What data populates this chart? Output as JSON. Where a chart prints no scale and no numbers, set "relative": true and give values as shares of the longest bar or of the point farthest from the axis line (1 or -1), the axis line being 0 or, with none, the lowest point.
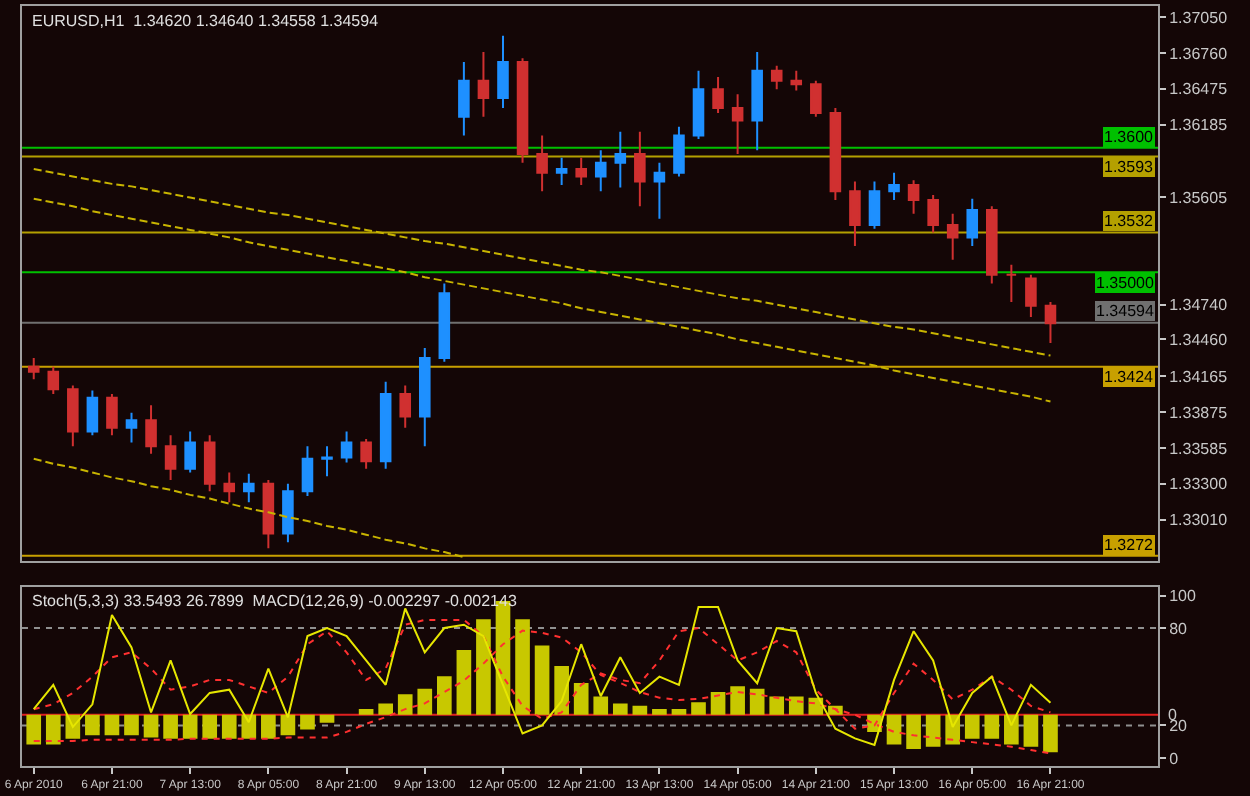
{
  "chart_data": [
    {
      "type": "candlestick",
      "title": "EURUSD,H1  1.34620 1.34640 1.34558 1.34594",
      "categories": [
        null,
        null,
        null,
        null,
        null,
        null,
        null,
        null,
        null,
        null,
        null,
        null,
        null,
        null,
        null,
        null,
        null,
        null,
        null,
        null,
        null,
        null,
        null,
        null,
        null,
        null,
        null,
        null,
        null,
        null,
        null,
        null,
        null,
        null,
        null,
        null,
        null,
        null,
        null,
        null,
        null,
        null,
        null,
        null,
        null,
        null,
        null,
        null,
        null,
        null,
        null,
        null,
        null
      ],
      "ohlc": [
        [
          1.3424,
          1.3431,
          1.3414,
          1.342
        ],
        [
          1.342,
          1.3424,
          1.3402,
          1.3406
        ],
        [
          1.3406,
          1.3409,
          1.336,
          1.3372
        ],
        [
          1.3372,
          1.3405,
          1.3369,
          1.3399
        ],
        [
          1.3399,
          1.3402,
          1.3369,
          1.3375
        ],
        [
          1.3375,
          1.3387,
          1.3363,
          1.3381
        ],
        [
          1.3381,
          1.3393,
          1.3354,
          1.336
        ],
        [
          1.336,
          1.3369,
          1.3333,
          1.3342
        ],
        [
          1.3342,
          1.3372,
          1.3339,
          1.3363
        ],
        [
          1.3363,
          1.3369,
          1.3324,
          1.333
        ],
        [
          1.333,
          1.3339,
          1.3315,
          1.3324
        ],
        [
          1.3324,
          1.3338,
          1.3315,
          1.333
        ],
        [
          1.333,
          1.3333,
          1.3278,
          1.329
        ],
        [
          1.329,
          1.333,
          1.3283,
          1.3324
        ],
        [
          1.3324,
          1.336,
          1.332,
          1.335
        ],
        [
          1.335,
          1.336,
          1.3336,
          1.3351
        ],
        [
          1.3351,
          1.3372,
          1.3347,
          1.3363
        ],
        [
          1.3363,
          1.3366,
          1.3342,
          1.3348
        ],
        [
          1.3348,
          1.3412,
          1.3342,
          1.3402
        ],
        [
          1.3402,
          1.3409,
          1.3375,
          1.3384
        ],
        [
          1.3384,
          1.3439,
          1.336,
          1.3431
        ],
        [
          1.3431,
          1.3491,
          1.3428,
          1.3483
        ],
        [
          1.3625,
          1.3669,
          1.361,
          1.3654
        ],
        [
          1.3654,
          1.3677,
          1.3625,
          1.364
        ],
        [
          1.364,
          1.369,
          1.3632,
          1.3669
        ],
        [
          1.3669,
          1.3672,
          1.3588,
          1.3595
        ],
        [
          1.3595,
          1.361,
          1.3565,
          1.358
        ],
        [
          1.358,
          1.3592,
          1.357,
          1.3583
        ],
        [
          1.3583,
          1.3592,
          1.357,
          1.3577
        ],
        [
          1.3577,
          1.3598,
          1.3565,
          1.3588
        ],
        [
          1.3588,
          1.3613,
          1.3568,
          1.3595
        ],
        [
          1.3595,
          1.3613,
          1.3553,
          1.3573
        ],
        [
          1.3573,
          1.3588,
          1.3543,
          1.358
        ],
        [
          1.358,
          1.3617,
          1.3577,
          1.361
        ],
        [
          1.361,
          1.3662,
          1.3607,
          1.3647
        ],
        [
          1.3647,
          1.3657,
          1.3628,
          1.3632
        ],
        [
          1.3632,
          1.3643,
          1.3595,
          1.3622
        ],
        [
          1.3622,
          1.3677,
          1.3598,
          1.3662
        ],
        [
          1.3662,
          1.3666,
          1.3647,
          1.3654
        ],
        [
          1.3654,
          1.3662,
          1.3646,
          1.3651
        ],
        [
          1.3651,
          1.3654,
          1.3625,
          1.3628
        ],
        [
          1.3628,
          1.3632,
          1.3558,
          1.3565
        ],
        [
          1.3565,
          1.3573,
          1.3521,
          1.3538
        ],
        [
          1.3538,
          1.3573,
          1.3535,
          1.3565
        ],
        [
          1.3565,
          1.358,
          1.3558,
          1.357
        ],
        [
          1.357,
          1.3574,
          1.3547,
          1.3558
        ],
        [
          1.3558,
          1.3562,
          1.3532,
          1.3538
        ],
        [
          1.3538,
          1.3547,
          1.351,
          1.3528
        ],
        [
          1.3528,
          1.3559,
          1.3521,
          1.355
        ],
        [
          1.355,
          1.3553,
          1.3491,
          1.3498
        ],
        [
          1.3498,
          1.3506,
          1.3476,
          1.3498
        ],
        [
          1.3495,
          1.3498,
          1.3464,
          1.3473
        ],
        [
          1.3473,
          1.3476,
          1.3443,
          1.3459
        ]
      ],
      "colors": [
        "#d03030",
        "#d03030",
        "#d03030",
        "#1e90ff",
        "#d03030",
        "#1e90ff",
        "#d03030",
        "#d03030",
        "#1e90ff",
        "#d03030",
        "#d03030",
        "#1e90ff",
        "#d03030",
        "#1e90ff",
        "#1e90ff",
        "#1e90ff",
        "#1e90ff",
        "#d03030",
        "#1e90ff",
        "#d03030",
        "#1e90ff",
        "#1e90ff",
        "#1e90ff",
        "#d03030",
        "#1e90ff",
        "#d03030",
        "#d03030",
        "#1e90ff",
        "#d03030",
        "#1e90ff",
        "#1e90ff",
        "#d03030",
        "#1e90ff",
        "#1e90ff",
        "#1e90ff",
        "#d03030",
        "#d03030",
        "#1e90ff",
        "#d03030",
        "#d03030",
        "#d03030",
        "#d03030",
        "#d03030",
        "#1e90ff",
        "#1e90ff",
        "#d03030",
        "#d03030",
        "#d03030",
        "#1e90ff",
        "#d03030",
        "#d03030",
        "#d03030",
        "#d03030"
      ],
      "series": [
        {
          "type": "line",
          "color": "#c8b400",
          "line_style": "dashed",
          "values": [
            1.3583,
            1.358,
            1.3577,
            1.3574,
            1.3571,
            1.3569,
            1.3566,
            1.3563,
            1.356,
            1.3557,
            1.3554,
            1.3551,
            1.3548,
            1.3546,
            1.3543,
            1.354,
            1.3537,
            1.3534,
            1.3531,
            1.3528,
            1.3525,
            1.3523,
            1.352,
            1.3517,
            1.3514,
            1.3511,
            1.3508,
            1.3505,
            1.3502,
            1.35,
            1.3497,
            1.3494,
            1.3491,
            1.3488,
            1.3485,
            1.3482,
            1.3479,
            1.3477,
            1.3474,
            1.3471,
            1.3468,
            1.3465,
            1.3462,
            1.3459,
            1.3456,
            1.3454,
            1.3451,
            1.3448,
            1.3445,
            1.3442,
            1.3439,
            1.3436,
            1.3433
          ]
        },
        {
          "type": "line",
          "color": "#c8b400",
          "line_style": "dashed",
          "values": [
            1.3559,
            1.3556,
            1.3553,
            1.3549,
            1.3546,
            1.3543,
            1.354,
            1.3537,
            1.3534,
            1.3531,
            1.3528,
            1.3524,
            1.3521,
            1.3518,
            1.3515,
            1.3512,
            1.3509,
            1.3506,
            1.3503,
            1.35,
            1.3496,
            1.3493,
            1.349,
            1.3487,
            1.3484,
            1.3481,
            1.3478,
            1.3475,
            1.3471,
            1.3468,
            1.3465,
            1.3462,
            1.3459,
            1.3456,
            1.3453,
            1.345,
            1.3446,
            1.3443,
            1.344,
            1.3437,
            1.3434,
            1.3431,
            1.3428,
            1.3425,
            1.3421,
            1.3418,
            1.3415,
            1.3412,
            1.3409,
            1.3406,
            1.3403,
            1.34,
            1.3396
          ]
        },
        {
          "type": "line",
          "color": "#c8b400",
          "line_style": "dashed",
          "values": [
            1.335,
            1.3346,
            1.3343,
            1.3339,
            1.3335,
            1.3332,
            1.3328,
            1.3325,
            1.3321,
            1.3318,
            1.3314,
            1.331,
            1.3307,
            1.3303,
            1.33,
            1.3296,
            1.3293,
            1.3289,
            1.3285,
            1.3282,
            1.3278,
            1.3275,
            1.3271,
            null,
            null,
            null,
            null,
            null,
            null,
            null,
            null,
            null,
            null,
            null,
            null,
            null,
            null,
            null,
            null,
            null,
            null,
            null,
            null,
            null,
            null,
            null,
            null,
            null,
            null,
            null,
            null,
            null,
            null
          ]
        }
      ],
      "ylim": [
        1.3268,
        1.3714
      ],
      "yticks": [
        {
          "value": 1.3705,
          "label": "1.37050"
        },
        {
          "value": 1.3676,
          "label": "1.36760"
        },
        {
          "value": 1.36475,
          "label": "1.36475"
        },
        {
          "value": 1.36185,
          "label": "1.36185"
        },
        {
          "value": 1.35605,
          "label": "1.35605"
        },
        {
          "value": 1.3474,
          "label": "1.34740"
        },
        {
          "value": 1.3446,
          "label": "1.34460"
        },
        {
          "value": 1.34165,
          "label": "1.34165"
        },
        {
          "value": 1.33875,
          "label": "1.33875"
        },
        {
          "value": 1.33585,
          "label": "1.33585"
        },
        {
          "value": 1.333,
          "label": "1.33300"
        },
        {
          "value": 1.3301,
          "label": "1.33010"
        }
      ],
      "tick_labels": "y",
      "ref_lines": [
        {
          "axis": "y",
          "value": 1.36,
          "label": "1.3600",
          "color": "#00c000"
        },
        {
          "axis": "y",
          "value": 1.3593,
          "label": "1.3593",
          "color": "#b4a000"
        },
        {
          "axis": "y",
          "value": 1.3532,
          "label": "1.3532",
          "color": "#b4a000"
        },
        {
          "axis": "y",
          "value": 1.35,
          "label": "1.35000",
          "color": "#00c000"
        },
        {
          "axis": "y",
          "value": 1.34594,
          "label": "1.34594",
          "color": "#707070"
        },
        {
          "axis": "y",
          "value": 1.3424,
          "label": "1.3424",
          "color": "#c8a000"
        },
        {
          "axis": "y",
          "value": 1.3272,
          "label": "1.3272",
          "color": "#c8a000"
        }
      ]
    },
    {
      "type": "bar",
      "relative": true,
      "title": "Stoch(5,3,3) 33.5493 26.7899  MACD(12,26,9) -0.002297 -0.002143",
      "categories": [
        null,
        null,
        null,
        null,
        null,
        null,
        null,
        null,
        null,
        null,
        null,
        null,
        null,
        null,
        null,
        null,
        null,
        null,
        null,
        null,
        null,
        null,
        null,
        null,
        null,
        null,
        null,
        null,
        null,
        null,
        null,
        null,
        null,
        null,
        null,
        null,
        null,
        null,
        null,
        null,
        null,
        null,
        null,
        null,
        null,
        null,
        null,
        null,
        null,
        null,
        null,
        null,
        null
      ],
      "series": [
        {
          "type": "bar",
          "color": "#c8c800",
          "values": [
            -0.26,
            -0.26,
            -0.21,
            -0.18,
            -0.18,
            -0.18,
            -0.2,
            -0.21,
            -0.21,
            -0.21,
            -0.21,
            -0.21,
            -0.21,
            -0.18,
            -0.13,
            -0.07,
            0,
            0.05,
            0.1,
            0.18,
            0.23,
            0.34,
            0.57,
            0.84,
            1,
            0.84,
            0.61,
            0.43,
            0.28,
            0.16,
            0.1,
            0.08,
            0.05,
            0.05,
            0.11,
            0.2,
            0.25,
            0.23,
            0.16,
            0.16,
            0.15,
            0.08,
            0,
            -0.15,
            -0.26,
            -0.3,
            -0.28,
            -0.26,
            -0.21,
            -0.21,
            -0.26,
            -0.28,
            -0.33
          ]
        },
        {
          "type": "line",
          "color": "#ff3030",
          "line_style": "dotted",
          "values": [
            -0.23,
            -0.23,
            -0.23,
            -0.22,
            -0.22,
            -0.22,
            -0.22,
            -0.22,
            -0.21,
            -0.21,
            -0.21,
            -0.21,
            -0.21,
            -0.2,
            -0.2,
            -0.2,
            -0.15,
            -0.08,
            -0.02,
            0.05,
            0.1,
            0.2,
            0.3,
            0.45,
            0.62,
            0.74,
            0.72,
            0.68,
            0.55,
            0.35,
            0.28,
            0.2,
            0.15,
            0.13,
            0.14,
            0.17,
            0.2,
            0.18,
            0.15,
            0.12,
            0.1,
            0.05,
            0,
            -0.08,
            -0.15,
            -0.18,
            -0.2,
            -0.22,
            -0.24,
            -0.26,
            -0.28,
            -0.31,
            -0.34
          ]
        }
      ],
      "tick_labels": false,
      "annotations": [
        "0"
      ],
      "ref_lines": [
        {
          "axis": "y",
          "value": 0,
          "color": "#e02020"
        }
      ]
    },
    {
      "type": "line",
      "categories": [
        "6 Apr 2010",
        null,
        null,
        null,
        "6 Apr 21:00",
        null,
        null,
        null,
        "7 Apr 13:00",
        null,
        null,
        null,
        "8 Apr 05:00",
        null,
        null,
        null,
        "8 Apr 21:00",
        null,
        null,
        null,
        "9 Apr 13:00",
        null,
        null,
        null,
        "12 Apr 05:00",
        null,
        null,
        null,
        "12 Apr 21:00",
        null,
        null,
        null,
        "13 Apr 13:00",
        null,
        null,
        null,
        "14 Apr 05:00",
        null,
        null,
        null,
        "14 Apr 21:00",
        null,
        null,
        null,
        "15 Apr 13:00",
        null,
        null,
        null,
        "16 Apr 05:00",
        null,
        null,
        null,
        "16 Apr 21:00"
      ],
      "series": [
        {
          "type": "line",
          "color": "#ff3030",
          "line_style": "dotted",
          "values": [
            30,
            33,
            40,
            50,
            62,
            65,
            55,
            42,
            44,
            48,
            48,
            44,
            40,
            50,
            70,
            78,
            65,
            48,
            55,
            82,
            85,
            85,
            85,
            75,
            50,
            32,
            24,
            28,
            45,
            52,
            48,
            46,
            60,
            78,
            80,
            70,
            60,
            65,
            72,
            65,
            42,
            30,
            18,
            20,
            40,
            58,
            48,
            36,
            42,
            50,
            42,
            32,
            28
          ]
        },
        {
          "type": "line",
          "color": "#e6e600",
          "line_style": "solid",
          "values": [
            30,
            45,
            19,
            33,
            88,
            68,
            28,
            60,
            27,
            40,
            42,
            22,
            55,
            25,
            75,
            80,
            75,
            60,
            45,
            92,
            65,
            80,
            82,
            75,
            45,
            15,
            20,
            35,
            70,
            38,
            62,
            40,
            50,
            45,
            93,
            93,
            60,
            46,
            80,
            78,
            40,
            18,
            12,
            8,
            48,
            78,
            60,
            19,
            40,
            50,
            20,
            45,
            34
          ]
        }
      ],
      "ylim": [
        -5,
        105
      ],
      "yticks": [
        0,
        20,
        80,
        100
      ],
      "ref_lines": [
        {
          "axis": "y",
          "value": 80,
          "color": "#909090",
          "line_style": "dotted"
        },
        {
          "axis": "y",
          "value": 20,
          "color": "#909090",
          "line_style": "dotted"
        }
      ]
    }
  ]
}
